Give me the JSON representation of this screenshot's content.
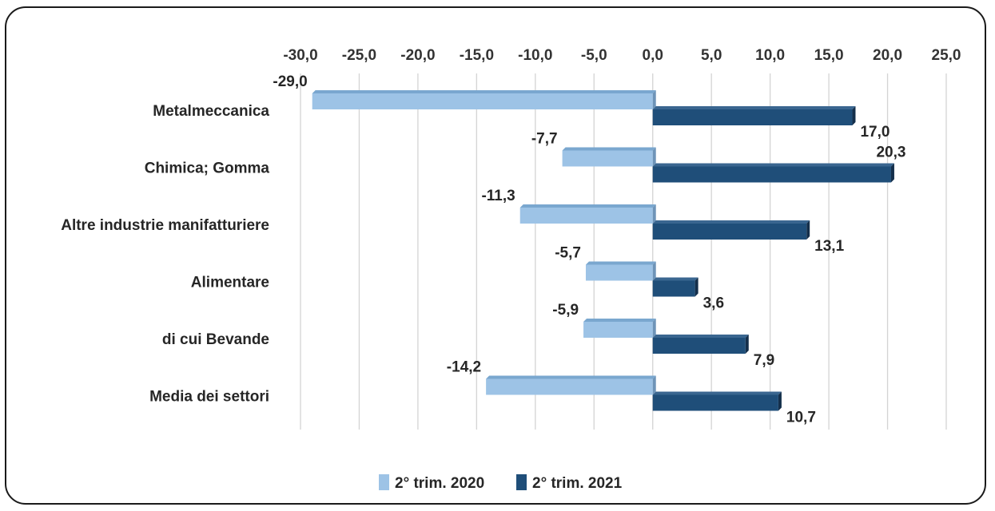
{
  "chart_data": {
    "type": "bar",
    "orientation": "horizontal",
    "title": "",
    "xlabel": "",
    "ylabel": "",
    "categories": [
      "Metalmeccanica",
      "Chimica; Gomma",
      "Altre industrie manifatturiere",
      "Alimentare",
      "di cui Bevande",
      "Media dei settori"
    ],
    "series": [
      {
        "name": "2° trim. 2020",
        "color": "#9dc3e6",
        "values": [
          -29.0,
          -7.7,
          -11.3,
          -5.7,
          -5.9,
          -14.2
        ],
        "labels": [
          "-29,0",
          "-7,7",
          "-11,3",
          "-5,7",
          "-5,9",
          "-14,2"
        ]
      },
      {
        "name": "2° trim. 2021",
        "color": "#1f4e79",
        "values": [
          17.0,
          20.3,
          13.1,
          3.6,
          7.9,
          10.7
        ],
        "labels": [
          "17,0",
          "20,3",
          "13,1",
          "3,6",
          "7,9",
          "10,7"
        ]
      }
    ],
    "xlim": [
      -30,
      25
    ],
    "ticks": [
      -30,
      -25,
      -20,
      -15,
      -10,
      -5,
      0,
      5,
      10,
      15,
      20,
      25
    ],
    "tick_labels": [
      "-30,0",
      "-25,0",
      "-20,0",
      "-15,0",
      "-10,0",
      "-5,0",
      "0,0",
      "5,0",
      "10,0",
      "15,0",
      "20,0",
      "25,0"
    ],
    "axis_position": "top",
    "grid": true,
    "legend_position": "bottom"
  }
}
